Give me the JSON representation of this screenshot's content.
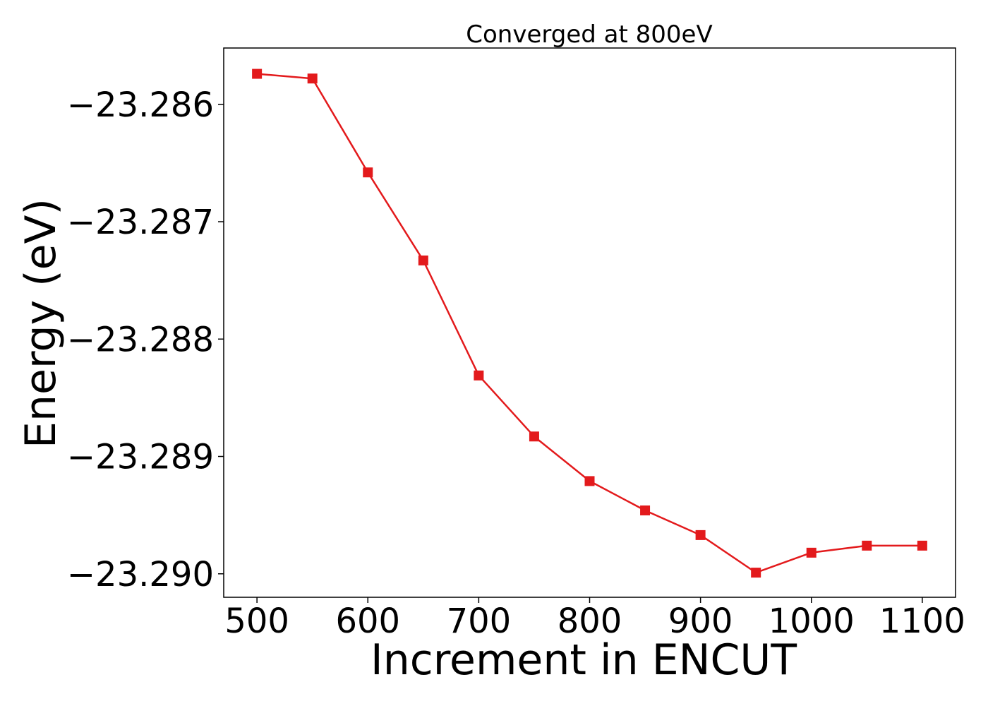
{
  "chart_data": {
    "type": "line",
    "title": "Converged at 800eV",
    "xlabel": "Increment in ENCUT",
    "ylabel": "Energy (eV)",
    "xlim": [
      470,
      1130
    ],
    "ylim": [
      -23.2902,
      -23.28552
    ],
    "xticks": [
      500,
      600,
      700,
      800,
      900,
      1000,
      1100
    ],
    "xtick_labels": [
      "500",
      "600",
      "700",
      "800",
      "900",
      "1000",
      "1100"
    ],
    "yticks": [
      -23.286,
      -23.287,
      -23.288,
      -23.289,
      -23.29
    ],
    "ytick_labels": [
      "−23.286",
      "−23.287",
      "−23.288",
      "−23.289",
      "−23.290"
    ],
    "grid": false,
    "series": [
      {
        "color": "#e31a1c",
        "marker": "square",
        "x": [
          500,
          550,
          600,
          650,
          700,
          750,
          800,
          850,
          900,
          950,
          1000,
          1050,
          1100
        ],
        "y": [
          -23.28574,
          -23.28578,
          -23.28658,
          -23.28733,
          -23.28831,
          -23.28883,
          -23.28921,
          -23.28946,
          -23.28967,
          -23.28999,
          -23.28982,
          -23.28976,
          -23.28976
        ]
      }
    ]
  }
}
